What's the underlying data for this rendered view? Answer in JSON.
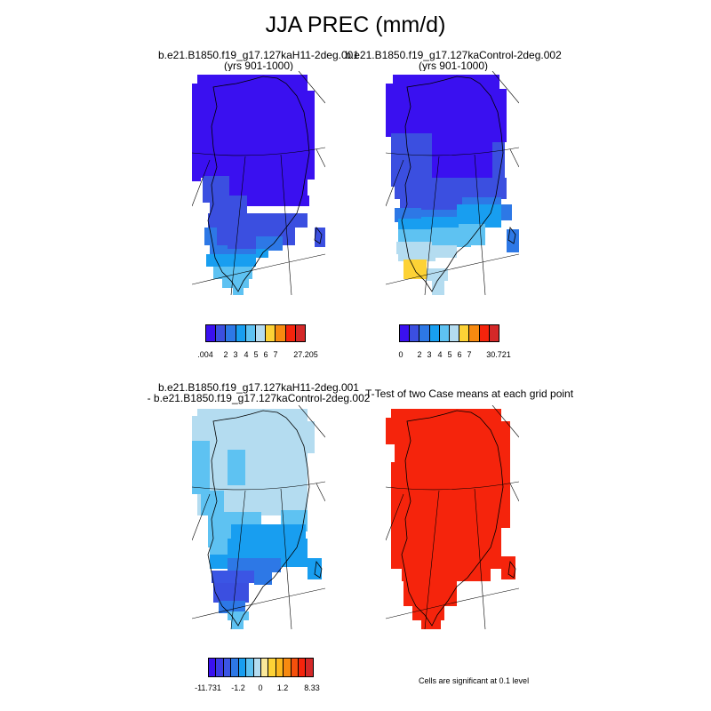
{
  "title": "JJA PREC (mm/d)",
  "panels": {
    "top_left": {
      "title_line1": "b.e21.B1850.f19_g17.127kaH11-2deg.001",
      "title_line2": "(yrs 901-1000)"
    },
    "top_right": {
      "title_line1": "b.e21.B1850.f19_g17.127kaControl-2deg.002",
      "title_line2": "(yrs 901-1000)"
    },
    "bottom_left": {
      "title_line1": "b.e21.B1850.f19_g17.127kaH11-2deg.001",
      "title_line2": "- b.e21.B1850.f19_g17.127kaControl-2deg.002"
    },
    "bottom_right": {
      "title_line1": "T-Test of two Case means at each grid point"
    }
  },
  "legends": {
    "top_left": {
      "colors": [
        "#3a10f0",
        "#3b4fe0",
        "#2d78e6",
        "#189ef0",
        "#5ec2f2",
        "#b4dcf0",
        "#fdd236",
        "#f78a10",
        "#f5240c",
        "#d42828"
      ],
      "labels": [
        ".004",
        "2",
        "3",
        "4",
        "5",
        "6",
        "7",
        "27.205"
      ]
    },
    "top_right": {
      "colors": [
        "#3a10f0",
        "#3b4fe0",
        "#2d78e6",
        "#189ef0",
        "#5ec2f2",
        "#b4dcf0",
        "#fdd236",
        "#f78a10",
        "#f5240c",
        "#d42828"
      ],
      "labels": [
        "0",
        "2",
        "3",
        "4",
        "5",
        "6",
        "7",
        "30.721"
      ]
    },
    "bottom_left": {
      "colors": [
        "#3a10f0",
        "#3b3ae6",
        "#3b55e4",
        "#2d78e6",
        "#189ef0",
        "#5ec2f2",
        "#b4dcf0",
        "#fbe89a",
        "#fdd236",
        "#fcb81e",
        "#f78a10",
        "#f5500c",
        "#f5240c",
        "#d42828"
      ],
      "labels": [
        "-11.731",
        "-1.2",
        "0",
        "1.2",
        "8.33"
      ]
    }
  },
  "significance_note": "Cells are significant at 0.1 level",
  "colors": {
    "deep_blue": "#3a10f0",
    "blue": "#3b4fe0",
    "mid_blue": "#2d78e6",
    "azure": "#189ef0",
    "light_blue": "#5ec2f2",
    "pale_blue": "#b4dcf0",
    "yellow": "#fdd236",
    "red": "#f5240c"
  }
}
